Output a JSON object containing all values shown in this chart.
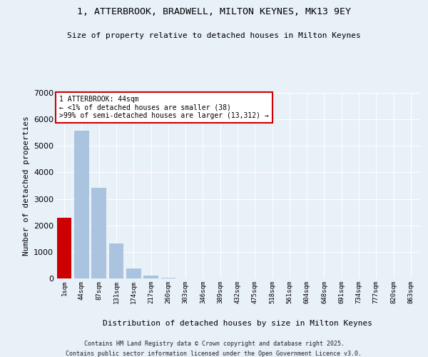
{
  "title_line1": "1, ATTERBROOK, BRADWELL, MILTON KEYNES, MK13 9EY",
  "title_line2": "Size of property relative to detached houses in Milton Keynes",
  "xlabel": "Distribution of detached houses by size in Milton Keynes",
  "ylabel": "Number of detached properties",
  "categories": [
    "1sqm",
    "44sqm",
    "87sqm",
    "131sqm",
    "174sqm",
    "217sqm",
    "260sqm",
    "303sqm",
    "346sqm",
    "389sqm",
    "432sqm",
    "475sqm",
    "518sqm",
    "561sqm",
    "604sqm",
    "648sqm",
    "691sqm",
    "734sqm",
    "777sqm",
    "820sqm",
    "863sqm"
  ],
  "values": [
    2280,
    5560,
    3420,
    1310,
    390,
    95,
    30,
    10,
    5,
    3,
    2,
    1,
    1,
    0,
    0,
    0,
    0,
    0,
    0,
    0,
    0
  ],
  "bar_colors": [
    "#cc0000",
    "#aac4e0",
    "#aac4e0",
    "#aac4e0",
    "#aac4e0",
    "#aac4e0",
    "#aac4e0",
    "#aac4e0",
    "#aac4e0",
    "#aac4e0",
    "#aac4e0",
    "#aac4e0",
    "#aac4e0",
    "#aac4e0",
    "#aac4e0",
    "#aac4e0",
    "#aac4e0",
    "#aac4e0",
    "#aac4e0",
    "#aac4e0",
    "#aac4e0"
  ],
  "ylim": [
    0,
    7000
  ],
  "annotation_text": "1 ATTERBROOK: 44sqm\n← <1% of detached houses are smaller (38)\n>99% of semi-detached houses are larger (13,312) →",
  "footnote1": "Contains HM Land Registry data © Crown copyright and database right 2025.",
  "footnote2": "Contains public sector information licensed under the Open Government Licence v3.0.",
  "bg_color": "#e8f0f8",
  "plot_bg_color": "#e8f0f8",
  "grid_color": "#ffffff",
  "annotation_box_color": "#cc0000"
}
